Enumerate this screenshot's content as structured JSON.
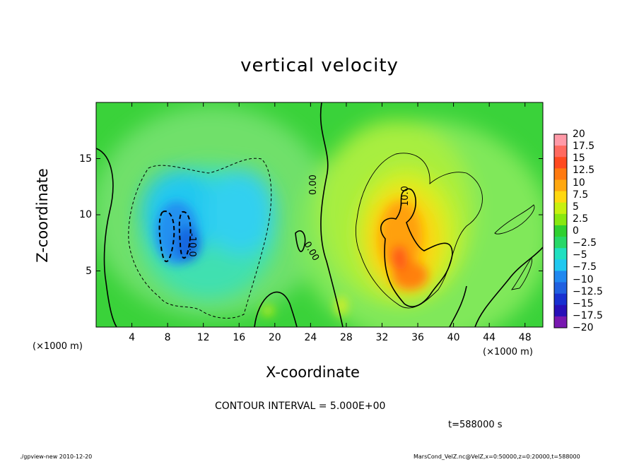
{
  "chart_data": {
    "type": "heatmap",
    "title": "vertical velocity",
    "xlabel": "X-coordinate",
    "ylabel": "Z-coordinate",
    "x_unit_left": "(×1000 m)",
    "x_unit_right": "(×1000 m)",
    "xlim": [
      0,
      50
    ],
    "ylim": [
      0,
      20
    ],
    "x_ticks": [
      "4",
      "8",
      "12",
      "16",
      "20",
      "24",
      "28",
      "32",
      "36",
      "40",
      "44",
      "48"
    ],
    "y_ticks": [
      "5",
      "10",
      "15"
    ],
    "colorbar_labels": [
      "20",
      "17.5",
      "15",
      "12.5",
      "10",
      "7.5",
      "5",
      "2.5",
      "0",
      "-2.5",
      "-5",
      "-7.5",
      "-10",
      "-12.5",
      "-15",
      "-17.5",
      "-20"
    ],
    "colorbar_colors": [
      "#ff9aa8",
      "#ff6a60",
      "#ff4a20",
      "#ff7a10",
      "#ffa810",
      "#ffd810",
      "#c8f010",
      "#88e810",
      "#30d030",
      "#28d868",
      "#20e0c0",
      "#20c8f0",
      "#2088f0",
      "#2060e0",
      "#1830d0",
      "#2810b8",
      "#7818b0"
    ],
    "contour_labels": [
      "0.00",
      "-10.0",
      "0.00",
      "10.0"
    ],
    "features": [
      {
        "name": "downdraft",
        "x_center": 12,
        "z_center": 9,
        "min_value": -12.5
      },
      {
        "name": "updraft",
        "x_center": 34,
        "z_center": 8,
        "max_value": 12.5
      }
    ]
  },
  "contour_interval_text": "CONTOUR INTERVAL = 5.000E+00",
  "time_text": "t=588000 s",
  "footer_left": "./gpview-new  2010-12-20",
  "footer_right": "MarsCond_VelZ.nc@VelZ,x=0:50000,z=0:20000,t=588000"
}
